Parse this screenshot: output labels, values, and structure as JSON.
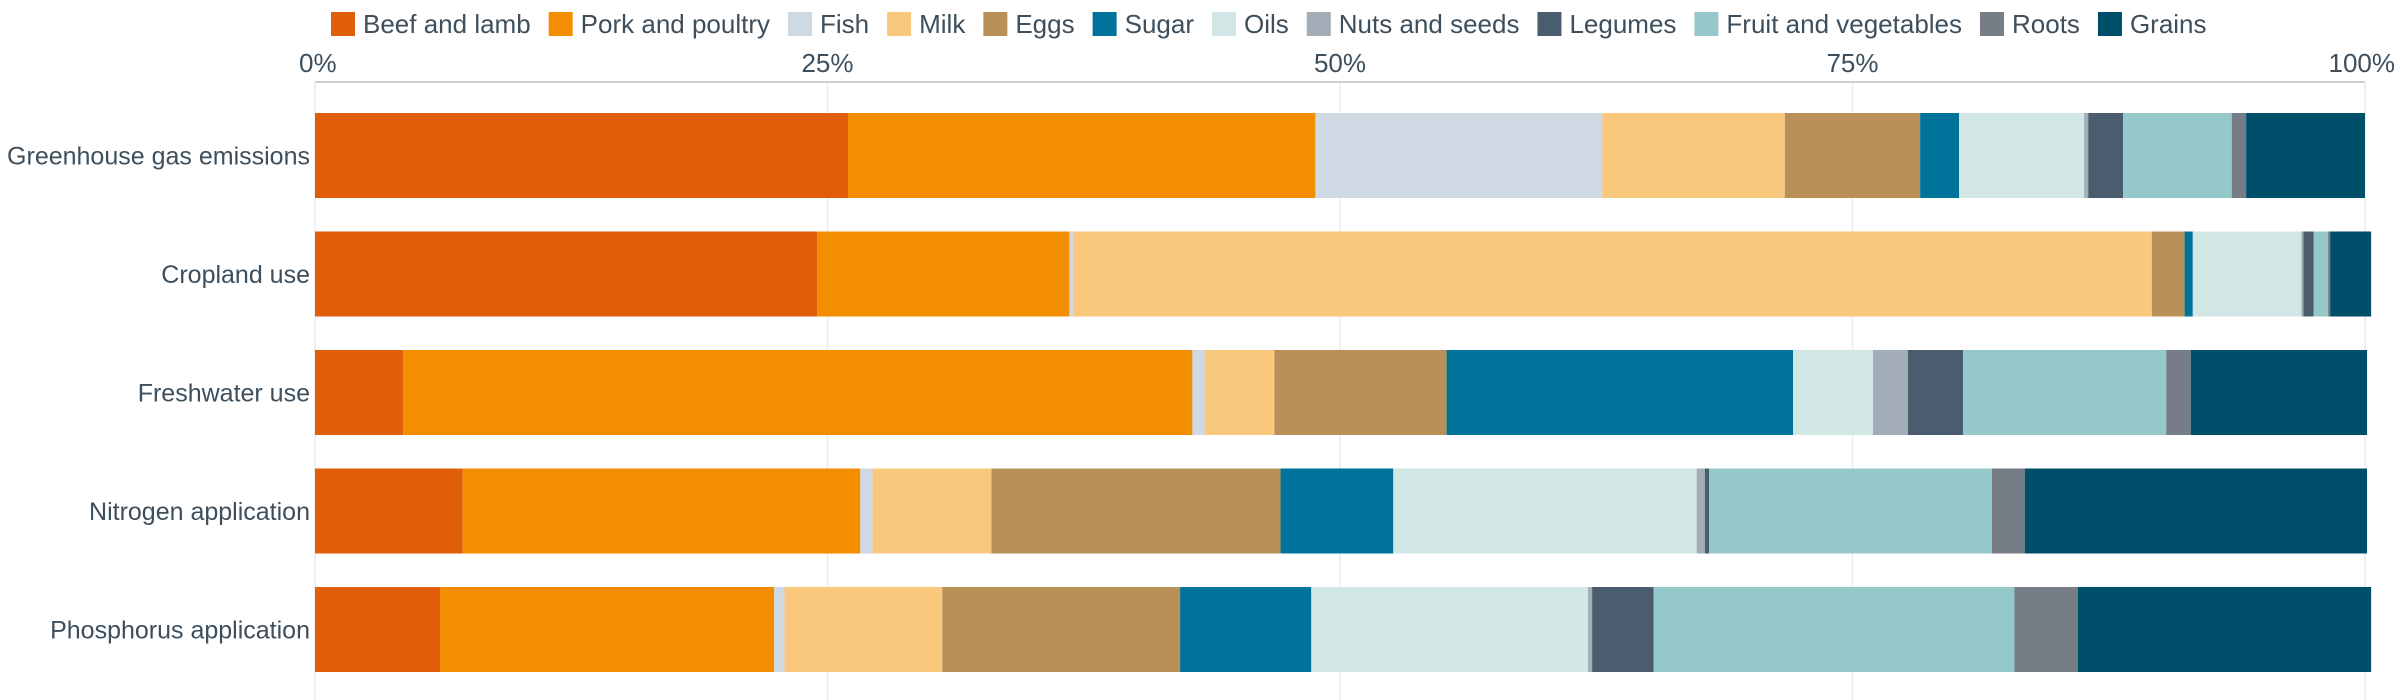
{
  "chart_data": {
    "type": "bar",
    "orientation": "horizontal",
    "stacked": true,
    "normalized": true,
    "categories": [
      "Greenhouse gas emissions",
      "Cropland use",
      "Freshwater use",
      "Nitrogen application",
      "Phosphorus application"
    ],
    "xlim": [
      0,
      100
    ],
    "x_ticks": [
      "0%",
      "25%",
      "50%",
      "75%",
      "100%"
    ],
    "x_tick_values": [
      0,
      25,
      50,
      75,
      100
    ],
    "grid": true,
    "legend_position": "top",
    "series": [
      {
        "name": "Beef and lamb",
        "color": "#e05e0a",
        "values": [
          26.0,
          24.5,
          4.3,
          7.2,
          6.1
        ]
      },
      {
        "name": "Pork and poultry",
        "color": "#f28e00",
        "values": [
          22.8,
          12.3,
          38.5,
          19.4,
          16.3
        ]
      },
      {
        "name": "Fish",
        "color": "#cfd9e3",
        "values": [
          14.0,
          0.2,
          0.6,
          0.6,
          0.5
        ]
      },
      {
        "name": "Milk",
        "color": "#f9c87c",
        "values": [
          8.9,
          52.6,
          3.4,
          5.8,
          7.7
        ]
      },
      {
        "name": "Eggs",
        "color": "#b89058",
        "values": [
          6.6,
          1.6,
          8.4,
          14.1,
          11.6
        ]
      },
      {
        "name": "Sugar",
        "color": "#00739a",
        "values": [
          1.9,
          0.4,
          16.9,
          5.5,
          6.4
        ]
      },
      {
        "name": "Oils",
        "color": "#d2e7e5",
        "values": [
          6.1,
          5.3,
          3.9,
          14.8,
          13.5
        ]
      },
      {
        "name": "Nuts and seeds",
        "color": "#a2adb8",
        "values": [
          0.2,
          0.1,
          1.7,
          0.4,
          0.2
        ]
      },
      {
        "name": "Legumes",
        "color": "#4a5c6e",
        "values": [
          1.7,
          0.5,
          2.7,
          0.2,
          3.0
        ]
      },
      {
        "name": "Fruit and vegetables",
        "color": "#95c8c8",
        "values": [
          5.3,
          0.7,
          9.9,
          13.8,
          17.6
        ]
      },
      {
        "name": "Roots",
        "color": "#777d87",
        "values": [
          0.7,
          0.1,
          1.2,
          1.6,
          3.1
        ]
      },
      {
        "name": "Grains",
        "color": "#004f6a",
        "values": [
          5.8,
          2.0,
          8.6,
          16.7,
          14.3
        ]
      }
    ]
  }
}
